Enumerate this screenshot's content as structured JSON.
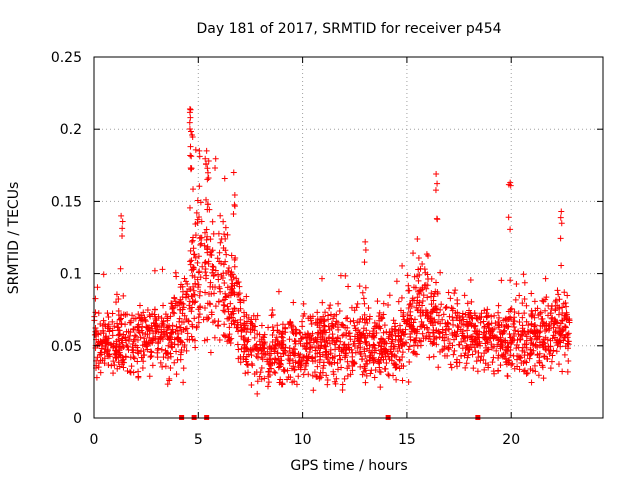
{
  "chart_data": {
    "type": "scatter",
    "title": "Day 181 of 2017, SRMTID for receiver p454",
    "xlabel": "GPS time / hours",
    "ylabel": "SRMTID / TECUs",
    "xlim": [
      0,
      24.4
    ],
    "ylim": [
      0,
      0.25
    ],
    "xticks": [
      0,
      5,
      10,
      15,
      20
    ],
    "yticks": [
      0,
      0.05,
      0.1,
      0.15,
      0.2,
      0.25
    ],
    "xtick_labels": [
      "0",
      "5",
      "10",
      "15",
      "20"
    ],
    "ytick_labels": [
      "0",
      "0.05",
      "0.1",
      "0.15",
      "0.2",
      "0.25"
    ],
    "grid": true,
    "marker": "+",
    "series_color": "#ff0000",
    "zero_markers_x": [
      4.2,
      4.8,
      5.4,
      14.1,
      18.4
    ],
    "peaks": [
      {
        "x": 4.6,
        "y": 0.214
      },
      {
        "x": 4.62,
        "y": 0.208
      },
      {
        "x": 4.7,
        "y": 0.196
      },
      {
        "x": 5.05,
        "y": 0.185
      },
      {
        "x": 5.4,
        "y": 0.185
      },
      {
        "x": 5.5,
        "y": 0.178
      },
      {
        "x": 6.7,
        "y": 0.17
      },
      {
        "x": 16.4,
        "y": 0.169
      },
      {
        "x": 19.95,
        "y": 0.163
      },
      {
        "x": 22.4,
        "y": 0.143
      },
      {
        "x": 1.3,
        "y": 0.14
      },
      {
        "x": 13.0,
        "y": 0.122
      },
      {
        "x": 15.5,
        "y": 0.124
      }
    ],
    "envelope_hours": [
      0,
      1,
      2,
      3,
      4,
      4.5,
      5,
      5.5,
      6,
      6.5,
      7,
      7.5,
      8,
      9,
      10,
      11,
      12,
      13,
      14,
      14.5,
      15,
      15.5,
      16,
      16.5,
      17,
      18,
      19,
      20,
      21,
      22,
      22.8
    ],
    "envelope_center": [
      0.052,
      0.05,
      0.052,
      0.056,
      0.058,
      0.085,
      0.1,
      0.097,
      0.09,
      0.085,
      0.065,
      0.05,
      0.045,
      0.047,
      0.05,
      0.05,
      0.052,
      0.052,
      0.05,
      0.05,
      0.06,
      0.075,
      0.075,
      0.065,
      0.06,
      0.058,
      0.056,
      0.055,
      0.055,
      0.058,
      0.06
    ],
    "envelope_spread": [
      0.018,
      0.016,
      0.015,
      0.018,
      0.02,
      0.03,
      0.035,
      0.032,
      0.03,
      0.03,
      0.022,
      0.016,
      0.015,
      0.016,
      0.017,
      0.017,
      0.018,
      0.018,
      0.017,
      0.017,
      0.02,
      0.025,
      0.022,
      0.02,
      0.018,
      0.018,
      0.017,
      0.018,
      0.017,
      0.018,
      0.016
    ]
  }
}
